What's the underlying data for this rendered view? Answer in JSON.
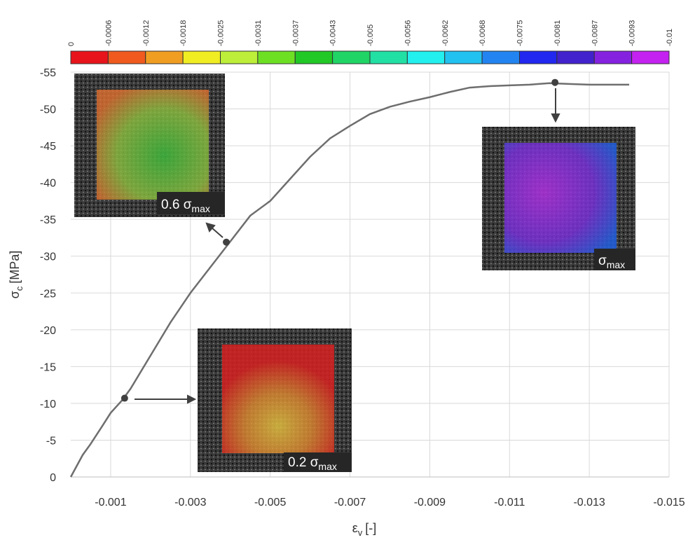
{
  "chart_data": {
    "type": "line",
    "x_label": {
      "text": "ε",
      "sub": "v",
      "unit": "[-]"
    },
    "y_label": {
      "text": "σ",
      "sub": "c",
      "unit": "[MPa]"
    },
    "x": [
      0,
      -0.0001,
      -0.0003,
      -0.0005,
      -0.0008,
      -0.001,
      -0.0013,
      -0.0015,
      -0.002,
      -0.0025,
      -0.003,
      -0.0035,
      -0.004,
      -0.0045,
      -0.005,
      -0.0055,
      -0.006,
      -0.0065,
      -0.007,
      -0.0075,
      -0.008,
      -0.0085,
      -0.009,
      -0.0095,
      -0.01,
      -0.0105,
      -0.011,
      -0.0115,
      -0.012,
      -0.0125,
      -0.013,
      -0.0135,
      -0.014
    ],
    "series": [
      {
        "color": "#6e6e6e",
        "values": [
          0,
          -1,
          -3,
          -4.5,
          -7,
          -8.7,
          -10.5,
          -12,
          -16.5,
          -21,
          -25,
          -28.5,
          -32,
          -35.5,
          -37.5,
          -40.5,
          -43.5,
          -46,
          -47.7,
          -49.3,
          -50.3,
          -51,
          -51.6,
          -52.3,
          -52.9,
          -53.1,
          -53.2,
          -53.3,
          -53.5,
          -53.4,
          -53.3,
          -53.3,
          -53.3
        ]
      }
    ],
    "points": {
      "color": "#404040",
      "x": [
        -0.00135,
        -0.0039,
        -0.01214
      ],
      "y": [
        -10.7,
        -31.9,
        -53.6
      ]
    },
    "xlim": [
      0,
      -0.015
    ],
    "xticks": [
      -0.001,
      -0.003,
      -0.005,
      -0.007,
      -0.009,
      -0.011,
      -0.013,
      -0.015
    ],
    "ylim": [
      0,
      -55
    ],
    "yticks": [
      0,
      -5,
      -10,
      -15,
      -20,
      -25,
      -30,
      -35,
      -40,
      -45,
      -50,
      -55
    ],
    "grid": true,
    "annotations": [
      {
        "text": "0.2 σ",
        "sub": "max"
      },
      {
        "text": "0.6 σ",
        "sub": "max"
      },
      {
        "text": "σ",
        "sub": "max"
      }
    ],
    "colorbar": {
      "colors": [
        "#e8141c",
        "#f05a1e",
        "#f09e22",
        "#f0ee22",
        "#bcee3a",
        "#6ee024",
        "#22c826",
        "#20d466",
        "#22e0a4",
        "#22f0ee",
        "#22c2f0",
        "#2284f0",
        "#2228f0",
        "#4222cc",
        "#8422e0",
        "#c422f0"
      ],
      "ticks": [
        0,
        -0.0006,
        -0.0012,
        -0.0018,
        -0.0025,
        -0.0031,
        -0.0037,
        -0.0043,
        -0.005,
        -0.0056,
        -0.0062,
        -0.0068,
        -0.0075,
        -0.0081,
        -0.0087,
        -0.0093,
        -0.01
      ]
    }
  }
}
